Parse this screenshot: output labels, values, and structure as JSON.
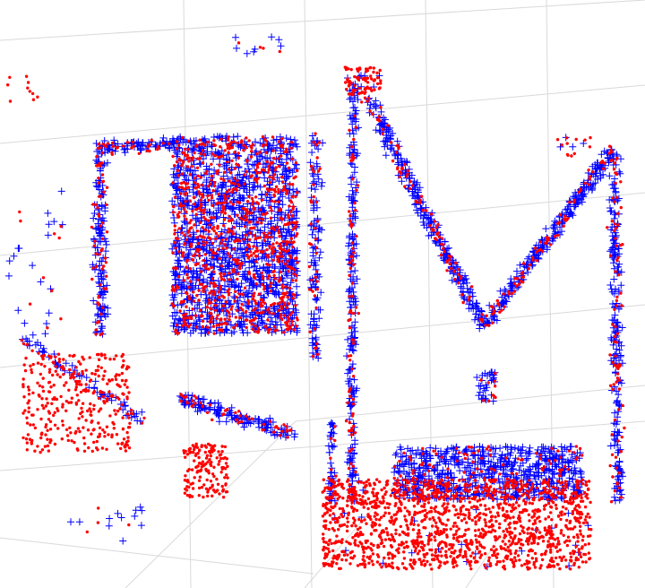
{
  "chart_data": {
    "type": "scatter",
    "projection": "3d",
    "title": "",
    "xlabel": "",
    "ylabel": "",
    "zlabel": "",
    "grid": true,
    "legend": "none",
    "colors": {
      "background": "#ffffff",
      "grid": "#d9d9d9",
      "series_a": "#0000ff",
      "series_b": "#ff0000"
    },
    "series": [
      {
        "marker": "plus",
        "color": "#0000ff"
      },
      {
        "marker": "dot",
        "color": "#ff0000"
      }
    ],
    "clusters": [
      {
        "id": "left-bracket-bar",
        "kind": "segment",
        "from": [
          112,
          160
        ],
        "to": [
          112,
          375
        ],
        "width": 22,
        "blue": 140,
        "red": 60,
        "red_spread": 5
      },
      {
        "id": "left-bracket-top",
        "kind": "segment",
        "from": [
          110,
          165
        ],
        "to": [
          200,
          160
        ],
        "width": 20,
        "blue": 80,
        "red": 30,
        "red_spread": 5
      },
      {
        "id": "left-bracket-bottom",
        "kind": "segment",
        "from": [
          25,
          378
        ],
        "to": [
          160,
          470
        ],
        "width": 20,
        "blue": 60,
        "red": 30,
        "red_spread": 5
      },
      {
        "id": "left-red-cloud",
        "kind": "box",
        "center": [
          85,
          450
        ],
        "size": [
          120,
          110
        ],
        "blue": 0,
        "red": 320,
        "red_spread": 0
      },
      {
        "id": "dense-block",
        "kind": "box",
        "center": [
          262,
          262
        ],
        "size": [
          140,
          220
        ],
        "blue": 1400,
        "red": 900,
        "red_spread": 2
      },
      {
        "id": "block-bottom-ring",
        "kind": "segment",
        "from": [
          200,
          445
        ],
        "to": [
          330,
          485
        ],
        "width": 24,
        "blue": 130,
        "red": 50,
        "red_spread": 5
      },
      {
        "id": "block-bottom-red",
        "kind": "box",
        "center": [
          230,
          525
        ],
        "size": [
          50,
          60
        ],
        "blue": 0,
        "red": 150,
        "red_spread": 0
      },
      {
        "id": "column-right-of-block",
        "kind": "segment",
        "from": [
          352,
          150
        ],
        "to": [
          352,
          400
        ],
        "width": 18,
        "blue": 110,
        "red": 40,
        "red_spread": 5
      },
      {
        "id": "vertical-line-main",
        "kind": "segment",
        "from": [
          395,
          95
        ],
        "to": [
          392,
          560
        ],
        "width": 14,
        "blue": 220,
        "red": 90,
        "red_spread": 4
      },
      {
        "id": "vertical-line-lower",
        "kind": "segment",
        "from": [
          370,
          470
        ],
        "to": [
          370,
          560
        ],
        "width": 10,
        "blue": 40,
        "red": 15,
        "red_spread": 4
      },
      {
        "id": "apex-red",
        "kind": "box",
        "center": [
          405,
          90
        ],
        "size": [
          40,
          30
        ],
        "blue": 10,
        "red": 70,
        "red_spread": 0
      },
      {
        "id": "m-left-diagonal",
        "kind": "segment",
        "from": [
          410,
          110
        ],
        "to": [
          540,
          365
        ],
        "width": 22,
        "blue": 260,
        "red": 90,
        "red_spread": 5
      },
      {
        "id": "m-right-diagonal",
        "kind": "segment",
        "from": [
          540,
          365
        ],
        "to": [
          685,
          165
        ],
        "width": 22,
        "blue": 250,
        "red": 90,
        "red_spread": 5
      },
      {
        "id": "right-vertical",
        "kind": "segment",
        "from": [
          686,
          175
        ],
        "to": [
          690,
          560
        ],
        "width": 18,
        "blue": 200,
        "red": 80,
        "red_spread": 5
      },
      {
        "id": "small-square",
        "kind": "box",
        "center": [
          543,
          432
        ],
        "size": [
          22,
          34
        ],
        "blue": 30,
        "red": 10,
        "red_spread": 0
      },
      {
        "id": "floor-blue-arc",
        "kind": "box",
        "center": [
          545,
          528
        ],
        "size": [
          210,
          60
        ],
        "blue": 650,
        "red": 150,
        "red_spread": 0
      },
      {
        "id": "floor-red-mass",
        "kind": "box",
        "center": [
          510,
          585
        ],
        "size": [
          300,
          100
        ],
        "blue": 30,
        "red": 1500,
        "red_spread": 0
      },
      {
        "id": "top-stragglers",
        "kind": "box",
        "center": [
          290,
          50
        ],
        "size": [
          60,
          20
        ],
        "blue": 8,
        "red": 4,
        "red_spread": 0
      },
      {
        "id": "upper-left-red",
        "kind": "box",
        "center": [
          25,
          100
        ],
        "size": [
          40,
          30
        ],
        "blue": 0,
        "red": 10,
        "red_spread": 0
      },
      {
        "id": "left-stragglers",
        "kind": "box",
        "center": [
          40,
          290
        ],
        "size": [
          60,
          180
        ],
        "blue": 20,
        "red": 10,
        "red_spread": 0
      },
      {
        "id": "bottom-left-stragglers",
        "kind": "box",
        "center": [
          120,
          585
        ],
        "size": [
          90,
          40
        ],
        "blue": 12,
        "red": 4,
        "red_spread": 0
      },
      {
        "id": "right-top-red",
        "kind": "box",
        "center": [
          640,
          165
        ],
        "size": [
          40,
          25
        ],
        "blue": 4,
        "red": 12,
        "red_spread": 0
      }
    ]
  }
}
